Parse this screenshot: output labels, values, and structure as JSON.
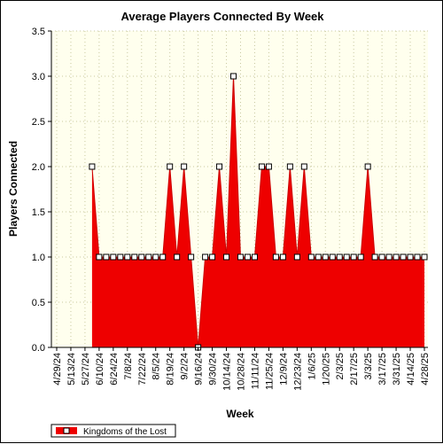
{
  "chart_data": {
    "type": "area",
    "title": "Average Players Connected By Week",
    "xlabel": "Week",
    "ylabel": "Players Connected",
    "ylim": [
      0,
      3.5
    ],
    "yticks": [
      "0.0",
      "0.5",
      "1.0",
      "1.5",
      "2.0",
      "2.5",
      "3.0",
      "3.5"
    ],
    "grid": true,
    "legend_position": "bottom-left",
    "x": [
      "4/29/24",
      "5/6/24",
      "5/13/24",
      "5/20/24",
      "5/27/24",
      "6/3/24",
      "6/10/24",
      "6/17/24",
      "6/24/24",
      "7/1/24",
      "7/8/24",
      "7/15/24",
      "7/22/24",
      "7/29/24",
      "8/5/24",
      "8/12/24",
      "8/19/24",
      "8/26/24",
      "9/2/24",
      "9/9/24",
      "9/16/24",
      "9/23/24",
      "9/30/24",
      "10/7/24",
      "10/14/24",
      "10/21/24",
      "10/28/24",
      "11/4/24",
      "11/11/24",
      "11/18/24",
      "11/25/24",
      "12/2/24",
      "12/9/24",
      "12/16/24",
      "12/23/24",
      "12/30/24",
      "1/6/25",
      "1/13/25",
      "1/20/25",
      "1/27/25",
      "2/3/25",
      "2/10/25",
      "2/17/25",
      "2/24/25",
      "3/3/25",
      "3/10/25",
      "3/17/25",
      "3/24/25",
      "3/31/25",
      "4/7/25",
      "4/14/25",
      "4/21/25",
      "4/28/25"
    ],
    "tick_labels": [
      "4/29/24",
      "5/13/24",
      "5/27/24",
      "6/10/24",
      "6/24/24",
      "7/8/24",
      "7/22/24",
      "8/5/24",
      "8/19/24",
      "9/2/24",
      "9/16/24",
      "9/30/24",
      "10/14/24",
      "10/28/24",
      "11/11/24",
      "11/25/24",
      "12/9/24",
      "12/23/24",
      "1/6/25",
      "1/20/25",
      "2/3/25",
      "2/17/25",
      "3/3/25",
      "3/17/25",
      "3/31/25",
      "4/14/25",
      "4/28/25"
    ],
    "series": [
      {
        "name": "Kingdoms of the Lost",
        "color": "#ee0000",
        "marker_fill": "#ffffff",
        "values": [
          null,
          null,
          null,
          null,
          null,
          2,
          1,
          1,
          1,
          1,
          1,
          1,
          1,
          1,
          1,
          1,
          2,
          1,
          2,
          1,
          0,
          1,
          1,
          2,
          1,
          3,
          1,
          1,
          1,
          2,
          2,
          1,
          1,
          2,
          1,
          2,
          1,
          1,
          1,
          1,
          1,
          1,
          1,
          1,
          2,
          1,
          1,
          1,
          1,
          1,
          1,
          1,
          1
        ]
      }
    ]
  },
  "colors": {
    "plot_background": "#ffffee",
    "grid": "#c8c8a0"
  }
}
